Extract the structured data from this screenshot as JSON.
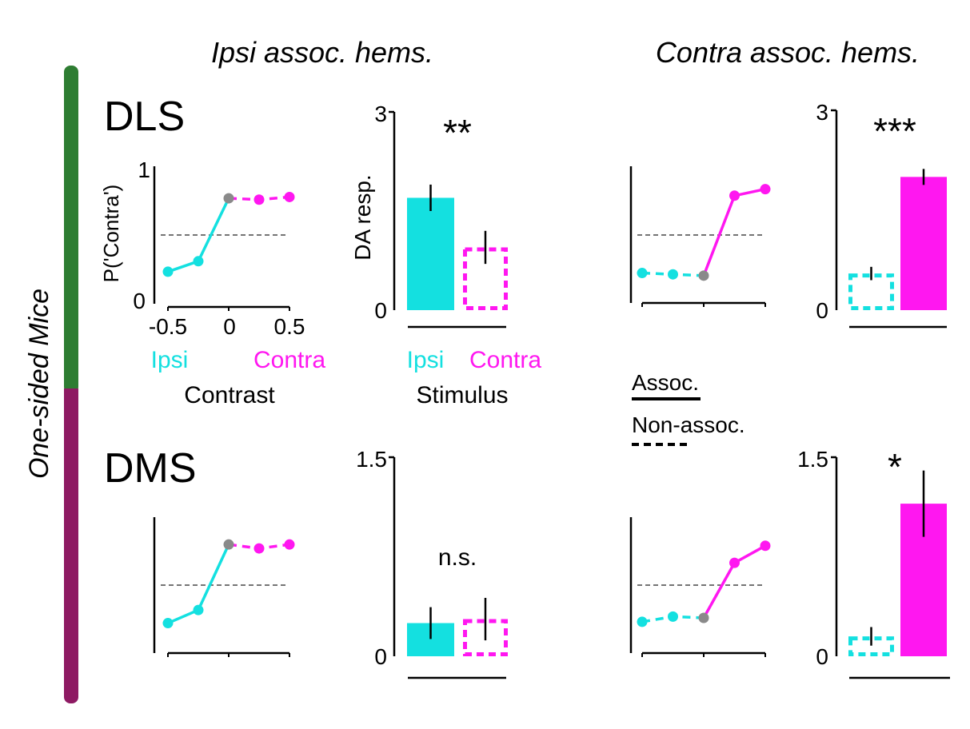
{
  "column_titles": [
    "Ipsi assoc. hems.",
    "Contra assoc. hems."
  ],
  "side_label": "One-sided Mice",
  "row_labels": [
    "DLS",
    "DMS"
  ],
  "colors": {
    "ipsi": "#14e0e0",
    "contra": "#ff17f0",
    "zero": "#8a8a8a",
    "green": "#2e7d32",
    "purple": "#8e1a63"
  },
  "psych_axes": {
    "ylabel": "P('Contra')",
    "yticks": [
      "0",
      "1"
    ],
    "xticks": [
      "-0.5",
      "0",
      "0.5"
    ],
    "xlabel": "Contrast",
    "xside_labels": [
      "Ipsi",
      "Contra"
    ]
  },
  "bar_axes": {
    "ylabel": "DA resp.",
    "xlabel": "Stimulus",
    "cat_labels": [
      "Ipsi",
      "Contra"
    ]
  },
  "legend": {
    "items": [
      "Assoc.",
      "Non-assoc."
    ]
  },
  "chart_data": [
    {
      "id": "dls-ipsi-psych",
      "type": "line",
      "x": [
        -0.5,
        -0.25,
        0,
        0.25,
        0.5
      ],
      "xlim": [
        -0.5,
        0.5
      ],
      "ylim": [
        0,
        1
      ],
      "y": [
        0.22,
        0.3,
        0.78,
        0.77,
        0.79
      ],
      "reference_y": 0.5,
      "series": [
        {
          "name": "Ipsi",
          "x": [
            -0.5,
            -0.25,
            0
          ],
          "y": [
            0.22,
            0.3,
            0.78
          ],
          "style": "solid",
          "color": "#14e0e0"
        },
        {
          "name": "Contra",
          "x": [
            0,
            0.25,
            0.5
          ],
          "y": [
            0.78,
            0.77,
            0.79
          ],
          "style": "dashed",
          "color": "#ff17f0"
        }
      ]
    },
    {
      "id": "dls-ipsi-bar",
      "type": "bar",
      "categories": [
        "Ipsi",
        "Contra"
      ],
      "values": [
        1.7,
        0.95
      ],
      "errors": [
        0.2,
        0.25
      ],
      "styles": [
        "solid",
        "dashed"
      ],
      "ylim": [
        0,
        3
      ],
      "yticks": [
        "0",
        "3"
      ],
      "significance": "**"
    },
    {
      "id": "dls-contra-psych",
      "type": "line",
      "x": [
        -0.5,
        -0.25,
        0,
        0.25,
        0.5
      ],
      "xlim": [
        -0.5,
        0.5
      ],
      "ylim": [
        0,
        1
      ],
      "y": [
        0.21,
        0.2,
        0.19,
        0.8,
        0.85
      ],
      "reference_y": 0.5,
      "series": [
        {
          "name": "Ipsi",
          "x": [
            -0.5,
            -0.25,
            0
          ],
          "y": [
            0.21,
            0.2,
            0.19
          ],
          "style": "dashed",
          "color": "#14e0e0"
        },
        {
          "name": "Contra",
          "x": [
            0,
            0.25,
            0.5
          ],
          "y": [
            0.19,
            0.8,
            0.85
          ],
          "style": "solid",
          "color": "#ff17f0"
        }
      ]
    },
    {
      "id": "dls-contra-bar",
      "type": "bar",
      "categories": [
        "Ipsi",
        "Contra"
      ],
      "values": [
        0.55,
        2.0
      ],
      "errors": [
        0.1,
        0.12
      ],
      "styles": [
        "dashed",
        "solid"
      ],
      "ylim": [
        0,
        3
      ],
      "yticks": [
        "0",
        "3"
      ],
      "significance": "***"
    },
    {
      "id": "dms-ipsi-psych",
      "type": "line",
      "x": [
        -0.5,
        -0.25,
        0,
        0.25,
        0.5
      ],
      "xlim": [
        -0.5,
        0.5
      ],
      "ylim": [
        0,
        1
      ],
      "y": [
        0.21,
        0.31,
        0.81,
        0.78,
        0.81
      ],
      "reference_y": 0.5,
      "series": [
        {
          "name": "Ipsi",
          "x": [
            -0.5,
            -0.25,
            0
          ],
          "y": [
            0.21,
            0.31,
            0.81
          ],
          "style": "solid",
          "color": "#14e0e0"
        },
        {
          "name": "Contra",
          "x": [
            0,
            0.25,
            0.5
          ],
          "y": [
            0.81,
            0.78,
            0.81
          ],
          "style": "dashed",
          "color": "#ff17f0"
        }
      ]
    },
    {
      "id": "dms-ipsi-bar",
      "type": "bar",
      "categories": [
        "Ipsi",
        "Contra"
      ],
      "values": [
        0.25,
        0.28
      ],
      "errors": [
        0.12,
        0.16
      ],
      "styles": [
        "solid",
        "dashed"
      ],
      "ylim": [
        0,
        1.5
      ],
      "yticks": [
        "0",
        "1.5"
      ],
      "significance": "n.s."
    },
    {
      "id": "dms-contra-psych",
      "type": "line",
      "x": [
        -0.5,
        -0.25,
        0,
        0.25,
        0.5
      ],
      "xlim": [
        -0.5,
        0.5
      ],
      "ylim": [
        0,
        1
      ],
      "y": [
        0.22,
        0.26,
        0.25,
        0.67,
        0.8
      ],
      "reference_y": 0.5,
      "series": [
        {
          "name": "Ipsi",
          "x": [
            -0.5,
            -0.25,
            0
          ],
          "y": [
            0.22,
            0.26,
            0.25
          ],
          "style": "dashed",
          "color": "#14e0e0"
        },
        {
          "name": "Contra",
          "x": [
            0,
            0.25,
            0.5
          ],
          "y": [
            0.25,
            0.67,
            0.8
          ],
          "style": "solid",
          "color": "#ff17f0"
        }
      ]
    },
    {
      "id": "dms-contra-bar",
      "type": "bar",
      "categories": [
        "Ipsi",
        "Contra"
      ],
      "values": [
        0.15,
        1.15
      ],
      "errors": [
        0.07,
        0.25
      ],
      "styles": [
        "dashed",
        "solid"
      ],
      "ylim": [
        0,
        1.5
      ],
      "yticks": [
        "0",
        "1.5"
      ],
      "significance": "*"
    }
  ]
}
